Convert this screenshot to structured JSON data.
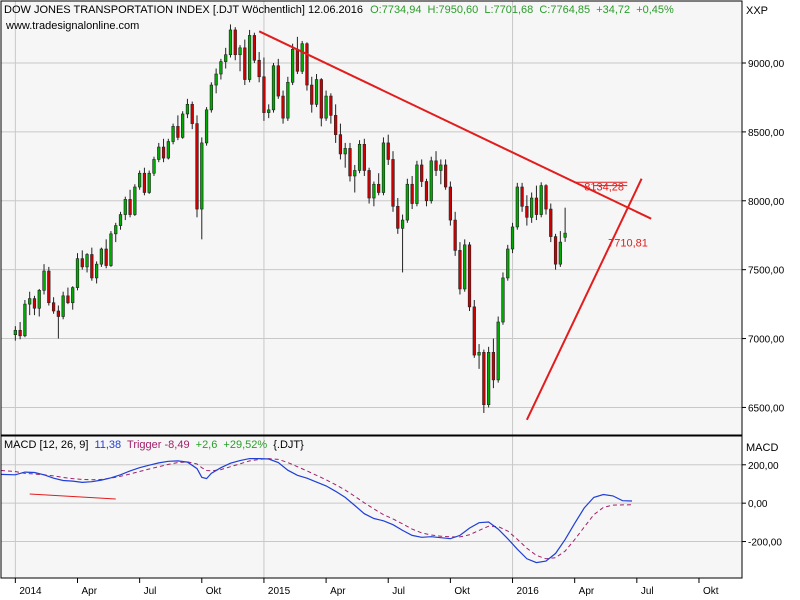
{
  "header": {
    "title": "DOW JONES TRANSPORTATION INDEX [.DJT  Wöchentlich] 12.06.2016",
    "open": "O:7734,94",
    "high": "H:7950,60",
    "low": "L:7701,68",
    "close": "C:7764,85",
    "change": "+34,72",
    "change_pct": "+0,45%",
    "source": "www.tradesignalonline.com",
    "symbol_right": "XXP"
  },
  "macd_header": {
    "label": "MACD [12, 26, 9]",
    "macd_value": "11,38",
    "trigger_text": "Trigger -8,49",
    "delta": "+2,6",
    "delta_pct": "+29,52%",
    "symbol": "{.DJT}",
    "panel_label": "MACD"
  },
  "annotations": {
    "level_high": "8134,28",
    "level_low": "7710,81"
  },
  "colors": {
    "up_candle": "#00aa00",
    "down_candle": "#cc0000",
    "trendline": "#e21d1d",
    "macd_line": "#1f3fd6",
    "trigger_line": "#a0206a",
    "header_green": "#2a9d2a",
    "grid": "#c8c8c8"
  },
  "chart_data": {
    "type": "candlestick",
    "price_axis": {
      "ticks": [
        9000,
        8500,
        8000,
        7500,
        7000,
        6500
      ],
      "tick_labels": [
        "9000,00",
        "8500,00",
        "8000,00",
        "7500,00",
        "7000,00",
        "6500,00"
      ],
      "range": [
        6300,
        9450
      ]
    },
    "macd_axis": {
      "ticks": [
        200,
        0,
        -200
      ],
      "tick_labels": [
        "200,00",
        "0,00",
        "-200,00"
      ],
      "range": [
        -390,
        350
      ]
    },
    "time_axis": {
      "labels": [
        "2014",
        "Apr",
        "Jul",
        "Okt",
        "2015",
        "Apr",
        "Jul",
        "Okt",
        "2016",
        "Apr",
        "Jul",
        "Okt"
      ],
      "label_weeks": [
        0,
        13,
        26,
        39,
        52,
        65,
        78,
        91,
        104,
        117,
        130,
        143
      ],
      "range_weeks": [
        -3,
        152
      ]
    },
    "candles": [
      [
        7028,
        7090,
        6985,
        7060
      ],
      [
        7060,
        7120,
        6995,
        7020
      ],
      [
        7020,
        7280,
        7010,
        7250
      ],
      [
        7250,
        7340,
        7170,
        7290
      ],
      [
        7290,
        7310,
        7170,
        7220
      ],
      [
        7220,
        7360,
        7160,
        7350
      ],
      [
        7350,
        7540,
        7320,
        7490
      ],
      [
        7490,
        7520,
        7240,
        7260
      ],
      [
        7260,
        7300,
        7180,
        7200
      ],
      [
        7200,
        7240,
        7000,
        7160
      ],
      [
        7160,
        7340,
        7140,
        7310
      ],
      [
        7310,
        7370,
        7250,
        7260
      ],
      [
        7260,
        7380,
        7210,
        7370
      ],
      [
        7370,
        7620,
        7350,
        7580
      ],
      [
        7580,
        7640,
        7500,
        7520
      ],
      [
        7520,
        7620,
        7480,
        7610
      ],
      [
        7610,
        7660,
        7420,
        7440
      ],
      [
        7440,
        7560,
        7400,
        7540
      ],
      [
        7540,
        7660,
        7520,
        7650
      ],
      [
        7650,
        7720,
        7510,
        7530
      ],
      [
        7530,
        7780,
        7520,
        7760
      ],
      [
        7760,
        7840,
        7700,
        7820
      ],
      [
        7820,
        7920,
        7790,
        7900
      ],
      [
        7900,
        8030,
        7860,
        8010
      ],
      [
        8010,
        8080,
        7880,
        7900
      ],
      [
        7900,
        8120,
        7890,
        8100
      ],
      [
        8100,
        8220,
        8080,
        8200
      ],
      [
        8200,
        8240,
        8040,
        8060
      ],
      [
        8060,
        8220,
        8050,
        8200
      ],
      [
        8200,
        8320,
        8180,
        8300
      ],
      [
        8300,
        8420,
        8280,
        8390
      ],
      [
        8390,
        8450,
        8280,
        8310
      ],
      [
        8310,
        8450,
        8300,
        8430
      ],
      [
        8430,
        8560,
        8410,
        8540
      ],
      [
        8540,
        8620,
        8440,
        8460
      ],
      [
        8460,
        8650,
        8450,
        8630
      ],
      [
        8630,
        8740,
        8600,
        8700
      ],
      [
        8700,
        8720,
        8520,
        8560
      ],
      [
        8560,
        8620,
        7880,
        7940
      ],
      [
        7940,
        8460,
        7720,
        8420
      ],
      [
        8420,
        8680,
        8400,
        8660
      ],
      [
        8660,
        8860,
        8640,
        8840
      ],
      [
        8840,
        8960,
        8780,
        8920
      ],
      [
        8920,
        9030,
        8880,
        9010
      ],
      [
        9010,
        9110,
        8960,
        9060
      ],
      [
        9060,
        9280,
        9040,
        9240
      ],
      [
        9240,
        9260,
        9020,
        9060
      ],
      [
        9060,
        9130,
        8940,
        9110
      ],
      [
        9110,
        9170,
        8840,
        8880
      ],
      [
        8880,
        9240,
        8860,
        9200
      ],
      [
        9200,
        9220,
        9000,
        9020
      ],
      [
        9020,
        9080,
        8860,
        8900
      ],
      [
        8900,
        9040,
        8580,
        8640
      ],
      [
        8640,
        8700,
        8600,
        8660
      ],
      [
        8660,
        9000,
        8640,
        8980
      ],
      [
        8980,
        9030,
        8740,
        8760
      ],
      [
        8760,
        8800,
        8560,
        8600
      ],
      [
        8600,
        8900,
        8580,
        8860
      ],
      [
        8860,
        9140,
        8840,
        9100
      ],
      [
        9100,
        9190,
        8920,
        8940
      ],
      [
        8940,
        9160,
        8920,
        9140
      ],
      [
        9140,
        9150,
        8800,
        8840
      ],
      [
        8840,
        8900,
        8640,
        8700
      ],
      [
        8700,
        8920,
        8680,
        8880
      ],
      [
        8880,
        8890,
        8540,
        8600
      ],
      [
        8600,
        8800,
        8580,
        8760
      ],
      [
        8760,
        8780,
        8560,
        8620
      ],
      [
        8620,
        8700,
        8420,
        8480
      ],
      [
        8480,
        8560,
        8300,
        8340
      ],
      [
        8340,
        8420,
        8240,
        8380
      ],
      [
        8380,
        8420,
        8140,
        8180
      ],
      [
        8180,
        8260,
        8060,
        8220
      ],
      [
        8220,
        8440,
        8200,
        8410
      ],
      [
        8410,
        8450,
        8180,
        8220
      ],
      [
        8220,
        8240,
        7980,
        8020
      ],
      [
        8020,
        8140,
        7960,
        8120
      ],
      [
        8120,
        8200,
        8040,
        8060
      ],
      [
        8060,
        8460,
        8040,
        8420
      ],
      [
        8420,
        8480,
        8260,
        8300
      ],
      [
        8300,
        8360,
        7920,
        7960
      ],
      [
        7960,
        8020,
        7760,
        7800
      ],
      [
        7800,
        7900,
        7480,
        7860
      ],
      [
        7860,
        8160,
        7840,
        8120
      ],
      [
        8120,
        8180,
        7940,
        7980
      ],
      [
        7980,
        8290,
        7960,
        8260
      ],
      [
        8260,
        8300,
        8100,
        8140
      ],
      [
        8140,
        8160,
        7960,
        8000
      ],
      [
        8000,
        8320,
        7980,
        8290
      ],
      [
        8290,
        8360,
        8180,
        8220
      ],
      [
        8220,
        8300,
        8120,
        8260
      ],
      [
        8260,
        8300,
        8080,
        8100
      ],
      [
        8100,
        8140,
        7820,
        7860
      ],
      [
        7860,
        7920,
        7600,
        7640
      ],
      [
        7640,
        7700,
        7320,
        7360
      ],
      [
        7360,
        7720,
        7340,
        7680
      ],
      [
        7680,
        7700,
        7200,
        7230
      ],
      [
        7230,
        7280,
        6860,
        6880
      ],
      [
        6880,
        6960,
        6780,
        6900
      ],
      [
        6900,
        6920,
        6460,
        6520
      ],
      [
        6520,
        6940,
        6500,
        6900
      ],
      [
        6900,
        7000,
        6640,
        6700
      ],
      [
        6700,
        7160,
        6680,
        7120
      ],
      [
        7120,
        7480,
        7100,
        7440
      ],
      [
        7440,
        7680,
        7420,
        7650
      ],
      [
        7650,
        7840,
        7620,
        7810
      ],
      [
        7810,
        8130,
        7790,
        8100
      ],
      [
        8100,
        8130,
        7920,
        7960
      ],
      [
        7960,
        8040,
        7820,
        7880
      ],
      [
        7880,
        8060,
        7840,
        8020
      ],
      [
        8020,
        8110,
        7860,
        7900
      ],
      [
        7900,
        8134,
        7880,
        8110
      ],
      [
        8110,
        8120,
        7900,
        7940
      ],
      [
        7940,
        7980,
        7700,
        7740
      ],
      [
        7740,
        7760,
        7500,
        7540
      ],
      [
        7540,
        7780,
        7520,
        7700
      ],
      [
        7735,
        7950,
        7702,
        7765
      ]
    ],
    "macd": [
      [
        -3,
        150
      ],
      [
        0,
        148
      ],
      [
        2,
        162
      ],
      [
        4,
        160
      ],
      [
        6,
        148
      ],
      [
        8,
        130
      ],
      [
        10,
        118
      ],
      [
        12,
        115
      ],
      [
        14,
        108
      ],
      [
        16,
        112
      ],
      [
        18,
        120
      ],
      [
        20,
        132
      ],
      [
        22,
        148
      ],
      [
        24,
        168
      ],
      [
        26,
        185
      ],
      [
        28,
        198
      ],
      [
        30,
        210
      ],
      [
        32,
        218
      ],
      [
        34,
        220
      ],
      [
        36,
        214
      ],
      [
        38,
        180
      ],
      [
        39,
        135
      ],
      [
        40,
        128
      ],
      [
        41,
        155
      ],
      [
        43,
        185
      ],
      [
        45,
        208
      ],
      [
        47,
        222
      ],
      [
        49,
        232
      ],
      [
        51,
        232
      ],
      [
        53,
        230
      ],
      [
        55,
        212
      ],
      [
        57,
        172
      ],
      [
        59,
        145
      ],
      [
        61,
        130
      ],
      [
        63,
        110
      ],
      [
        65,
        90
      ],
      [
        67,
        62
      ],
      [
        69,
        30
      ],
      [
        71,
        -12
      ],
      [
        73,
        -55
      ],
      [
        75,
        -80
      ],
      [
        77,
        -92
      ],
      [
        79,
        -112
      ],
      [
        81,
        -142
      ],
      [
        83,
        -168
      ],
      [
        85,
        -178
      ],
      [
        87,
        -175
      ],
      [
        89,
        -180
      ],
      [
        91,
        -185
      ],
      [
        93,
        -168
      ],
      [
        95,
        -130
      ],
      [
        97,
        -102
      ],
      [
        99,
        -98
      ],
      [
        101,
        -135
      ],
      [
        103,
        -185
      ],
      [
        105,
        -240
      ],
      [
        107,
        -290
      ],
      [
        109,
        -310
      ],
      [
        111,
        -302
      ],
      [
        113,
        -262
      ],
      [
        115,
        -190
      ],
      [
        117,
        -105
      ],
      [
        119,
        -25
      ],
      [
        121,
        30
      ],
      [
        123,
        45
      ],
      [
        125,
        38
      ],
      [
        127,
        13
      ],
      [
        129,
        11.38
      ]
    ],
    "trigger": [
      [
        -3,
        170
      ],
      [
        0,
        165
      ],
      [
        2,
        155
      ],
      [
        4,
        152
      ],
      [
        6,
        148
      ],
      [
        8,
        142
      ],
      [
        10,
        134
      ],
      [
        12,
        128
      ],
      [
        14,
        124
      ],
      [
        16,
        122
      ],
      [
        18,
        124
      ],
      [
        20,
        130
      ],
      [
        22,
        140
      ],
      [
        24,
        152
      ],
      [
        26,
        165
      ],
      [
        28,
        178
      ],
      [
        30,
        190
      ],
      [
        32,
        202
      ],
      [
        34,
        212
      ],
      [
        36,
        215
      ],
      [
        38,
        204
      ],
      [
        39,
        185
      ],
      [
        40,
        170
      ],
      [
        41,
        168
      ],
      [
        43,
        175
      ],
      [
        45,
        190
      ],
      [
        47,
        205
      ],
      [
        49,
        220
      ],
      [
        51,
        228
      ],
      [
        53,
        232
      ],
      [
        55,
        228
      ],
      [
        57,
        212
      ],
      [
        59,
        190
      ],
      [
        61,
        168
      ],
      [
        63,
        145
      ],
      [
        65,
        122
      ],
      [
        67,
        96
      ],
      [
        69,
        68
      ],
      [
        71,
        36
      ],
      [
        73,
        2
      ],
      [
        75,
        -30
      ],
      [
        77,
        -60
      ],
      [
        79,
        -82
      ],
      [
        81,
        -108
      ],
      [
        83,
        -135
      ],
      [
        85,
        -155
      ],
      [
        87,
        -166
      ],
      [
        89,
        -172
      ],
      [
        91,
        -176
      ],
      [
        93,
        -176
      ],
      [
        95,
        -165
      ],
      [
        97,
        -142
      ],
      [
        99,
        -120
      ],
      [
        101,
        -122
      ],
      [
        103,
        -145
      ],
      [
        105,
        -188
      ],
      [
        107,
        -235
      ],
      [
        109,
        -272
      ],
      [
        111,
        -290
      ],
      [
        113,
        -284
      ],
      [
        115,
        -250
      ],
      [
        117,
        -190
      ],
      [
        119,
        -125
      ],
      [
        121,
        -60
      ],
      [
        123,
        -22
      ],
      [
        125,
        -10
      ],
      [
        127,
        -9
      ],
      [
        129,
        -8.49
      ]
    ],
    "trendlines": [
      {
        "from": [
          51,
          9230
        ],
        "to": [
          133,
          7870
        ]
      },
      {
        "from": [
          107,
          6410
        ],
        "to": [
          131,
          8160
        ]
      },
      {
        "from": [
          117,
          8134.28
        ],
        "to": [
          128,
          8134.28
        ]
      },
      {
        "from": [
          121,
          8110
        ],
        "to": [
          128,
          8110
        ]
      }
    ],
    "macd_lines": [
      {
        "from": [
          3,
          48
        ],
        "to": [
          21,
          22
        ]
      }
    ]
  }
}
